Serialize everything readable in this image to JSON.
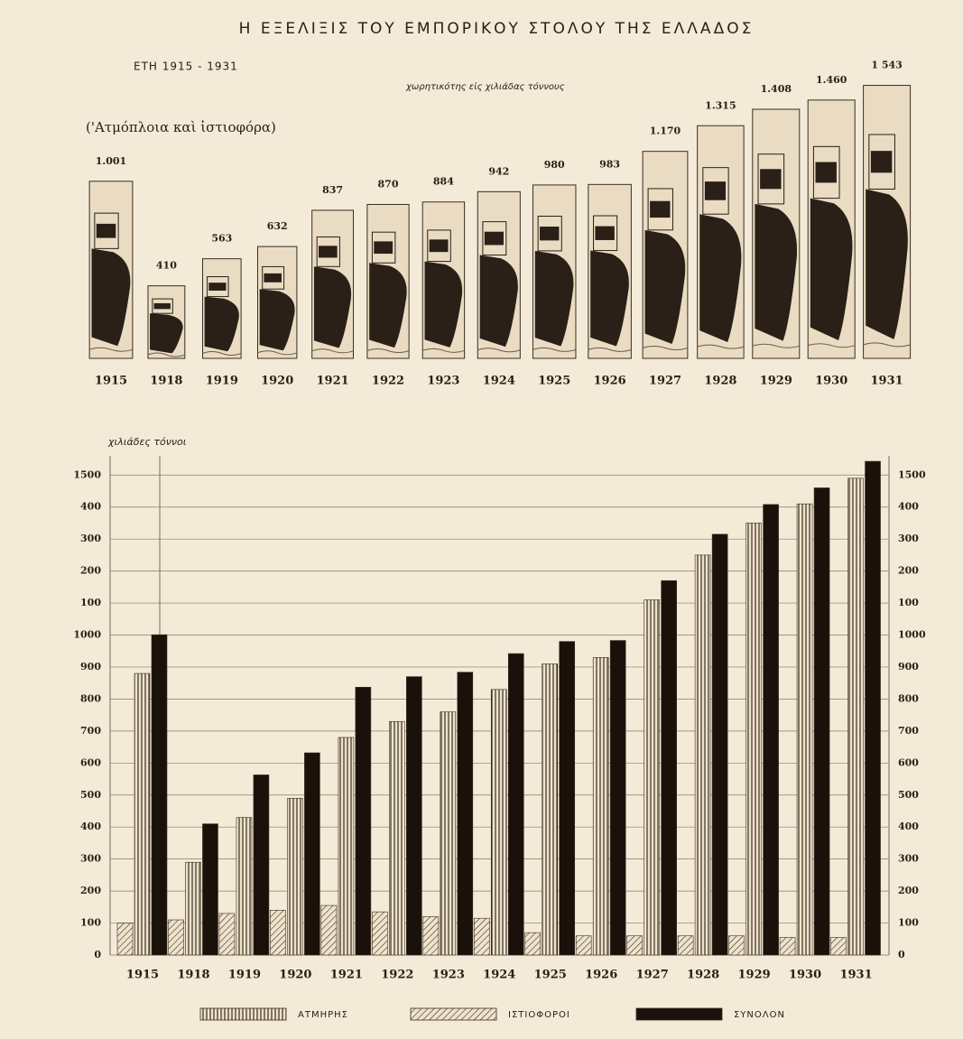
{
  "chart_data": [
    {
      "type": "pictogram",
      "title": "Η ΕΞΕΛΙΞΙΣ ΤΟΥ ΕΜΠΟΡΙΚΟΥ ΣΤΟΛΟΥ ΤΗΣ ΕΛΛΑΔΟΣ",
      "subtitle": "ΕΤΗ 1915 - 1931",
      "unit_label": "χωρητικότης εἰς χιλιάδας τόννους",
      "note": "('Ατμόπλοια καὶ ἱστιοφόρα)",
      "categories": [
        "1915",
        "1918",
        "1919",
        "1920",
        "1921",
        "1922",
        "1923",
        "1924",
        "1925",
        "1926",
        "1927",
        "1928",
        "1929",
        "1930",
        "1931"
      ],
      "values": [
        1001,
        410,
        563,
        632,
        837,
        870,
        884,
        942,
        980,
        983,
        1170,
        1315,
        1408,
        1460,
        1543
      ],
      "value_labels": [
        "1.001",
        "410",
        "563",
        "632",
        "837",
        "870",
        "884",
        "942",
        "980",
        "983",
        "1.170",
        "1.315",
        "1.408",
        "1.460",
        "1 543"
      ],
      "color": "#2a2017"
    },
    {
      "type": "bar",
      "y_label": "χιλιάδες τόννοι",
      "categories": [
        "1915",
        "1918",
        "1919",
        "1920",
        "1921",
        "1922",
        "1923",
        "1924",
        "1925",
        "1926",
        "1927",
        "1928",
        "1929",
        "1930",
        "1931"
      ],
      "series": [
        {
          "name": "ΙΣΤΙΟΦΟΡΟΙ",
          "color": "#3a2d20",
          "hatch": "diagonal",
          "values": [
            100,
            110,
            130,
            140,
            155,
            135,
            120,
            115,
            70,
            60,
            60,
            60,
            60,
            55,
            55
          ]
        },
        {
          "name": "ΑΤΜΗΡΗΣ",
          "color": "#3a2d20",
          "hatch": "vertical",
          "values": [
            880,
            290,
            430,
            490,
            680,
            730,
            760,
            830,
            910,
            930,
            1110,
            1250,
            1350,
            1410,
            1490
          ]
        },
        {
          "name": "ΣΥΝΟΛΟΝ",
          "color": "#1a120a",
          "hatch": "solid",
          "values": [
            1001,
            410,
            563,
            632,
            837,
            870,
            884,
            942,
            980,
            983,
            1170,
            1315,
            1408,
            1460,
            1543
          ]
        }
      ],
      "legend_order": [
        "ΑΤΜΗΡΗΣ",
        "ΙΣΤΙΟΦΟΡΟΙ",
        "ΣΥΝΟΛΟΝ"
      ],
      "ylim": [
        0,
        1560
      ],
      "yticks": [
        0,
        100,
        200,
        300,
        400,
        500,
        600,
        700,
        800,
        900,
        1000,
        {
          "value": 1100,
          "label": "100"
        },
        {
          "value": 1200,
          "label": "200"
        },
        {
          "value": 1300,
          "label": "300"
        },
        {
          "value": 1400,
          "label": "400"
        },
        1500
      ],
      "grid": true
    }
  ]
}
